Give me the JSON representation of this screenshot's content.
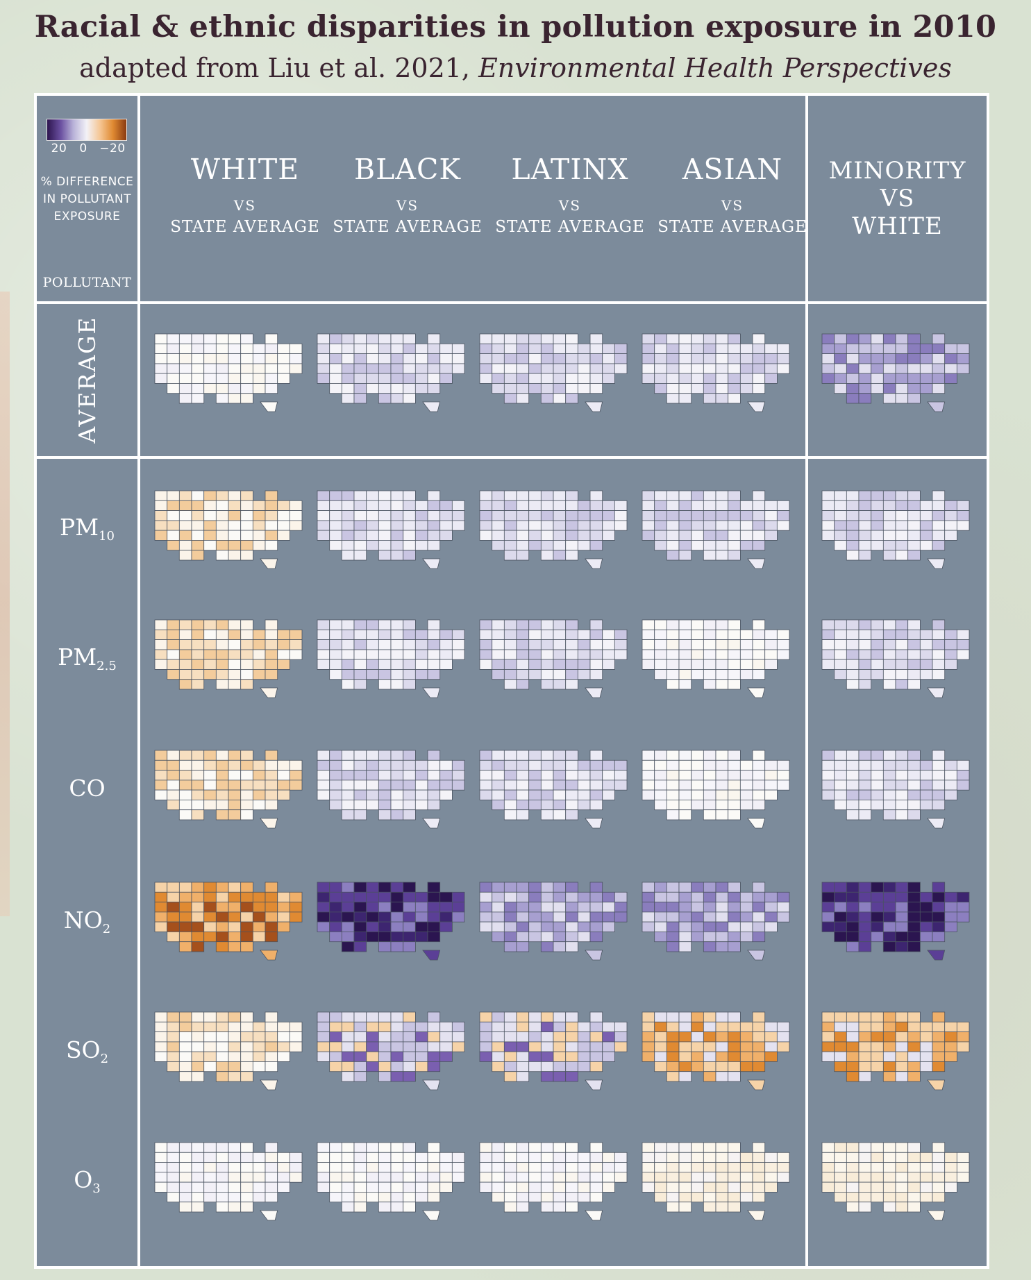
{
  "title": "Racial & ethnic disparities in pollution exposure in 2010",
  "subtitle_prefix": "adapted from Liu et al. 2021, ",
  "subtitle_journal": "Environmental Health Perspectives",
  "legend": {
    "tick_left": "20",
    "tick_mid": "0",
    "tick_right": "−20",
    "line1": "% DIFFERENCE",
    "line2": "IN POLLUTANT",
    "line3": "EXPOSURE",
    "pollutant_header": "POLLUTANT",
    "colors": [
      "#2e1650",
      "#6a4fa0",
      "#b8b2d8",
      "#f3f2f7",
      "#f5c592",
      "#e08a32",
      "#8a3a10"
    ]
  },
  "columns": [
    {
      "name": "WHITE",
      "vs": "VS",
      "ref": "STATE AVERAGE"
    },
    {
      "name": "BLACK",
      "vs": "VS",
      "ref": "STATE AVERAGE"
    },
    {
      "name": "LATINX",
      "vs": "VS",
      "ref": "STATE AVERAGE"
    },
    {
      "name": "ASIAN",
      "vs": "VS",
      "ref": "STATE AVERAGE"
    }
  ],
  "minority_col": {
    "line1": "MINORITY",
    "line2": "VS",
    "line3": "WHITE"
  },
  "rows": {
    "average": "AVERAGE",
    "pm10": {
      "base": "PM",
      "sub": "10"
    },
    "pm25": {
      "base": "PM",
      "sub": "2.5"
    },
    "co": "CO",
    "no2": {
      "base": "NO",
      "sub": "2"
    },
    "so2": {
      "base": "SO",
      "sub": "2"
    },
    "o3": {
      "base": "O",
      "sub": "3"
    }
  },
  "map_styles": {
    "average": [
      "w",
      "b1",
      "b1",
      "b1",
      "b2"
    ],
    "pm10": [
      "o1",
      "b1",
      "b1",
      "b1",
      "b1"
    ],
    "pm25": [
      "o1",
      "b1",
      "b1",
      "w",
      "b1"
    ],
    "co": [
      "o1",
      "b1",
      "b1",
      "w",
      "b1"
    ],
    "no2": [
      "o2",
      "b3",
      "b2",
      "b2",
      "b3"
    ],
    "so2": [
      "o1",
      "mix",
      "mix",
      "omix",
      "omix"
    ],
    "o3": [
      "w",
      "w",
      "w",
      "o0",
      "o0"
    ]
  }
}
